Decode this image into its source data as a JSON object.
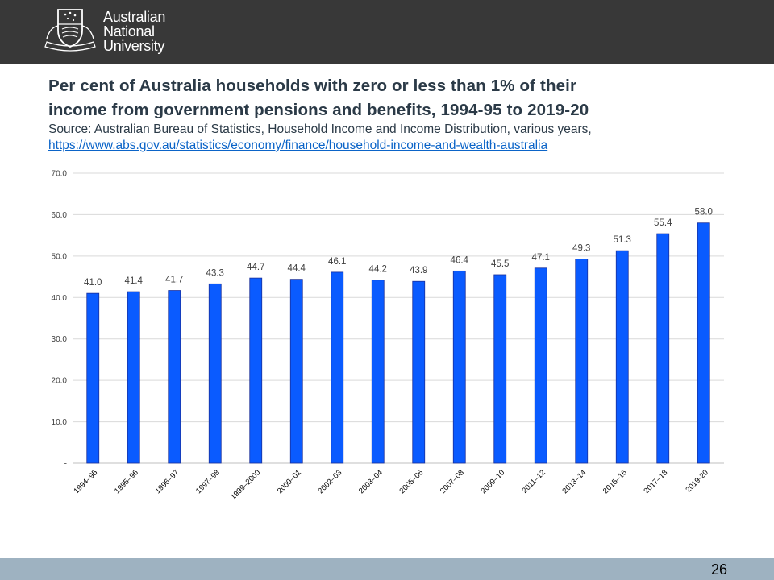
{
  "header": {
    "logo": {
      "icon": "anu-crest-icon",
      "lines": [
        "Australian",
        "National",
        "University"
      ]
    }
  },
  "slide": {
    "title_line1": "Per cent of Australia households with zero or less than 1% of their",
    "title_line2": "income from government pensions and benefits, 1994-95 to 2019-20",
    "source_text": "Source: Australian Bureau of Statistics, Household Income and Income Distribution, various years,",
    "source_link": "https://www.abs.gov.au/statistics/economy/finance/household-income-and-wealth-australia",
    "page_number": "26"
  },
  "colors": {
    "bar": "#0a5bff",
    "bar_border": "#1a2f9a",
    "header": "#383838",
    "footer": "#9eb2c1"
  },
  "chart_data": {
    "type": "bar",
    "categories": [
      "1994–95",
      "1995–96",
      "1996–97",
      "1997–98",
      "1999–2000",
      "2000–01",
      "2002–03",
      "2003–04",
      "2005–06",
      "2007–08",
      "2009–10",
      "2011–12",
      "2013–14",
      "2015–16",
      "2017–18",
      "2019-20"
    ],
    "values": [
      41.0,
      41.4,
      41.7,
      43.3,
      44.7,
      44.4,
      46.1,
      44.2,
      43.9,
      46.4,
      45.5,
      47.1,
      49.3,
      51.3,
      55.4,
      58.0
    ],
    "value_labels": [
      "41.0",
      "41.4",
      "41.7",
      "43.3",
      "44.7",
      "44.4",
      "46.1",
      "44.2",
      "43.9",
      "46.4",
      "45.5",
      "47.1",
      "49.3",
      "51.3",
      "55.4",
      "58.0"
    ],
    "y_ticks": [
      0,
      10,
      20,
      30,
      40,
      50,
      60,
      70
    ],
    "y_tick_labels": [
      "-",
      "10.0",
      "20.0",
      "30.0",
      "40.0",
      "50.0",
      "60.0",
      "70.0"
    ],
    "ylim": [
      0,
      70
    ],
    "grid": true,
    "legend": "none"
  }
}
